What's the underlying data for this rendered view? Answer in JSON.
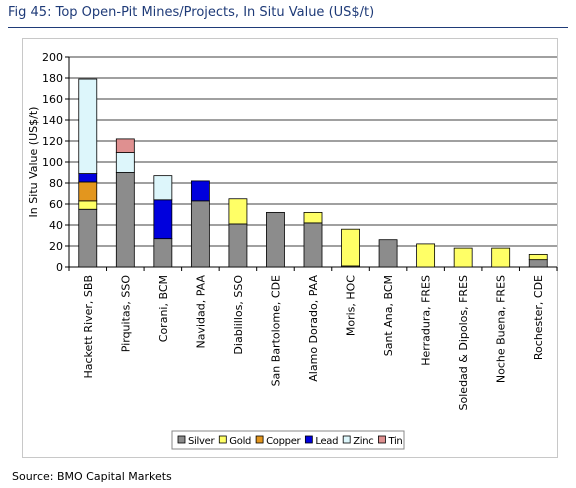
{
  "figure": {
    "title": "Fig 45: Top Open-Pit Mines/Projects, In Situ Value (US$/t)",
    "source": "Source: BMO Capital Markets"
  },
  "colors": {
    "Silver": "#8c8c8c",
    "Gold": "#ffff66",
    "Copper": "#e3961e",
    "Lead": "#0000dd",
    "Zinc": "#ddf6fb",
    "Tin": "#df9090",
    "title": "#1f3b78"
  },
  "chart_data": {
    "type": "bar",
    "stacked": true,
    "ylabel": "In Situ Value (US$/t)",
    "xlabel": "",
    "ylim": [
      0,
      200
    ],
    "yticks": [
      0,
      20,
      40,
      60,
      80,
      100,
      120,
      140,
      160,
      180,
      200
    ],
    "grid": true,
    "legend_position": "bottom",
    "categories": [
      "Hackett River, SBB",
      "Pirquitas, SSO",
      "Corani, BCM",
      "Navidad, PAA",
      "Diablillos, SSO",
      "San Bartolome, CDE",
      "Alamo Dorado, PAA",
      "Moris, HOC",
      "Sant Ana, BCM",
      "Herradura, FRES",
      "Soledad & Dipolos, FRES",
      "Noche Buena, FRES",
      "Rochester, CDE"
    ],
    "series": [
      {
        "name": "Silver",
        "values": [
          55,
          90,
          27,
          63,
          41,
          52,
          42,
          1,
          26,
          0,
          0,
          0,
          7
        ]
      },
      {
        "name": "Gold",
        "values": [
          8,
          0,
          0,
          0,
          24,
          0,
          10,
          35,
          0,
          22,
          18,
          18,
          5
        ]
      },
      {
        "name": "Copper",
        "values": [
          18,
          0,
          0,
          0,
          0,
          0,
          0,
          0,
          0,
          0,
          0,
          0,
          0
        ]
      },
      {
        "name": "Lead",
        "values": [
          8,
          0,
          37,
          19,
          0,
          0,
          0,
          0,
          0,
          0,
          0,
          0,
          0
        ]
      },
      {
        "name": "Zinc",
        "values": [
          90,
          19,
          23,
          0,
          0,
          0,
          0,
          0,
          0,
          0,
          0,
          0,
          0
        ]
      },
      {
        "name": "Tin",
        "values": [
          0,
          13,
          0,
          0,
          0,
          0,
          0,
          0,
          0,
          0,
          0,
          0,
          0
        ]
      }
    ]
  }
}
